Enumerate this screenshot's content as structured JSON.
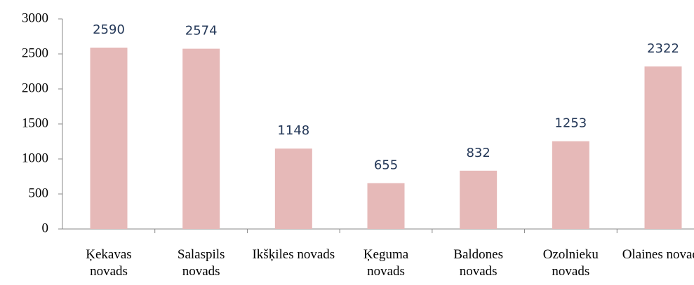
{
  "chart_data": {
    "type": "bar",
    "categories": [
      "Ķekavas novads",
      "Salaspils novads",
      "Ikšķiles novads",
      "Ķeguma novads",
      "Baldones novads",
      "Ozolnieku novads",
      "Olaines novads"
    ],
    "values": [
      2590,
      2574,
      1148,
      655,
      832,
      1253,
      2322
    ],
    "color": "#e6b9b8",
    "ylim": [
      0,
      3000
    ],
    "yticks": [
      0,
      500,
      1000,
      1500,
      2000,
      2500,
      3000
    ],
    "grid": false
  }
}
